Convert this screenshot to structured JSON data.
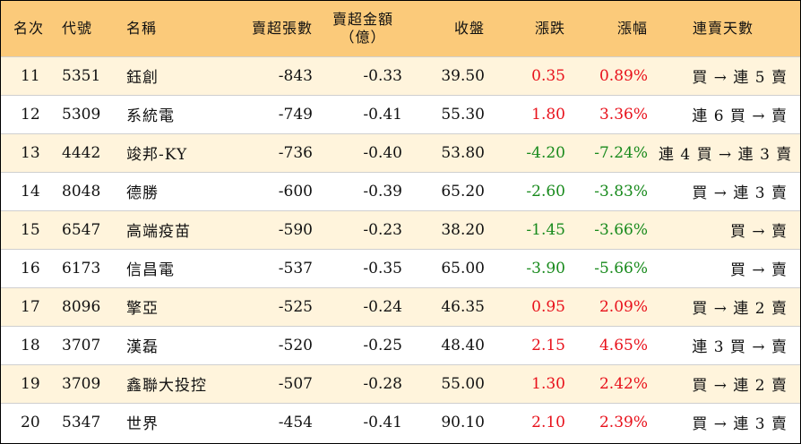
{
  "colors": {
    "header_bg": "#fbca7a",
    "stripe_bg": "#fff4dc",
    "up": "#e8111b",
    "down": "#188a1c"
  },
  "headers": {
    "rank": "名次",
    "code": "代號",
    "name": "名稱",
    "sell_lots": "賣超張數",
    "sell_amount_line1": "賣超金額",
    "sell_amount_line2": "（億）",
    "close": "收盤",
    "change": "漲跌",
    "change_pct": "漲幅",
    "streak": "連賣天數"
  },
  "rows": [
    {
      "rank": "11",
      "code": "5351",
      "name": "鈺創",
      "sell_lots": "-843",
      "sell_amount": "-0.33",
      "close": "39.50",
      "change": "0.35",
      "change_pct": "0.89%",
      "dir": "up",
      "streak": "買 → 連 5 賣"
    },
    {
      "rank": "12",
      "code": "5309",
      "name": "系統電",
      "sell_lots": "-749",
      "sell_amount": "-0.41",
      "close": "55.30",
      "change": "1.80",
      "change_pct": "3.36%",
      "dir": "up",
      "streak": "連 6 買 → 賣"
    },
    {
      "rank": "13",
      "code": "4442",
      "name": "竣邦-KY",
      "sell_lots": "-736",
      "sell_amount": "-0.40",
      "close": "53.80",
      "change": "-4.20",
      "change_pct": "-7.24%",
      "dir": "down",
      "streak": "連 4 買 → 連 3 賣"
    },
    {
      "rank": "14",
      "code": "8048",
      "name": "德勝",
      "sell_lots": "-600",
      "sell_amount": "-0.39",
      "close": "65.20",
      "change": "-2.60",
      "change_pct": "-3.83%",
      "dir": "down",
      "streak": "買 → 連 3 賣"
    },
    {
      "rank": "15",
      "code": "6547",
      "name": "高端疫苗",
      "sell_lots": "-590",
      "sell_amount": "-0.23",
      "close": "38.20",
      "change": "-1.45",
      "change_pct": "-3.66%",
      "dir": "down",
      "streak": "買 → 賣"
    },
    {
      "rank": "16",
      "code": "6173",
      "name": "信昌電",
      "sell_lots": "-537",
      "sell_amount": "-0.35",
      "close": "65.00",
      "change": "-3.90",
      "change_pct": "-5.66%",
      "dir": "down",
      "streak": "買 → 賣"
    },
    {
      "rank": "17",
      "code": "8096",
      "name": "擎亞",
      "sell_lots": "-525",
      "sell_amount": "-0.24",
      "close": "46.35",
      "change": "0.95",
      "change_pct": "2.09%",
      "dir": "up",
      "streak": "買 → 連 2 賣"
    },
    {
      "rank": "18",
      "code": "3707",
      "name": "漢磊",
      "sell_lots": "-520",
      "sell_amount": "-0.25",
      "close": "48.40",
      "change": "2.15",
      "change_pct": "4.65%",
      "dir": "up",
      "streak": "連 3 買 → 賣"
    },
    {
      "rank": "19",
      "code": "3709",
      "name": "鑫聯大投控",
      "sell_lots": "-507",
      "sell_amount": "-0.28",
      "close": "55.00",
      "change": "1.30",
      "change_pct": "2.42%",
      "dir": "up",
      "streak": "買 → 連 2 賣"
    },
    {
      "rank": "20",
      "code": "5347",
      "name": "世界",
      "sell_lots": "-454",
      "sell_amount": "-0.41",
      "close": "90.10",
      "change": "2.10",
      "change_pct": "2.39%",
      "dir": "up",
      "streak": "買 → 連 3 賣"
    }
  ]
}
